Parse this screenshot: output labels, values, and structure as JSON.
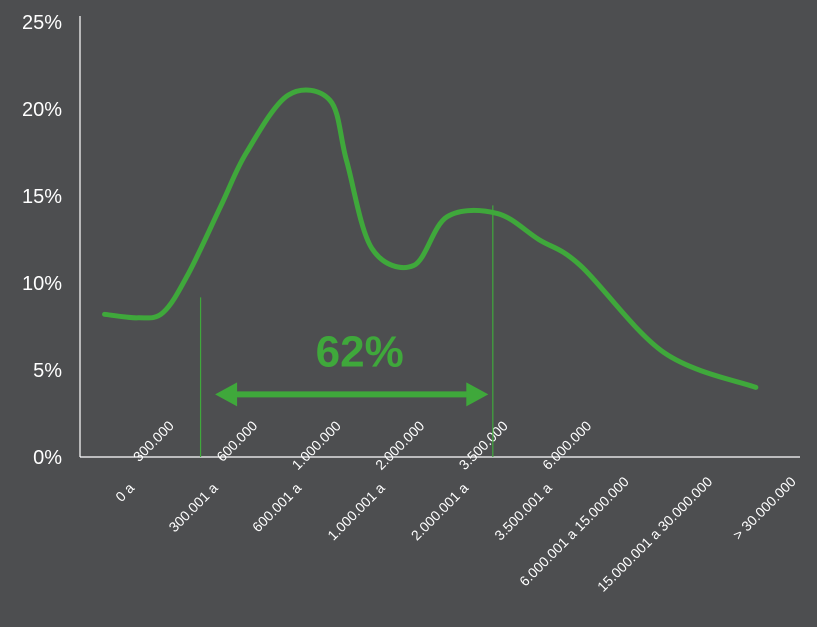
{
  "chart_data": {
    "type": "line",
    "y_ticks": [
      "0%",
      "5%",
      "10%",
      "15%",
      "20%",
      "25%"
    ],
    "ylim": [
      0,
      25
    ],
    "categories": [
      [
        "0 a",
        "300.000"
      ],
      [
        "300.001 a",
        "600.000"
      ],
      [
        "600.001 a",
        "1.000.000"
      ],
      [
        "1.000.001 a",
        "2.000.000"
      ],
      [
        "2.000.001 a",
        "3.500.000"
      ],
      [
        "3.500.001 a",
        "6.000.000"
      ],
      [
        "6.000.001 a 15.000.000"
      ],
      [
        "15.000.001 a 30.000.000"
      ],
      [
        "> 30.000.000"
      ]
    ],
    "series": [
      {
        "x": [
          0.3,
          0.7,
          1.0,
          1.3,
          1.7,
          2.0,
          2.5,
          3.0,
          3.2,
          3.5,
          4.0,
          4.4,
          5.0,
          5.5,
          6.0,
          7.0,
          8.1
        ],
        "y": [
          8.2,
          8.0,
          8.3,
          10.5,
          14.5,
          17.5,
          20.8,
          20.5,
          17.0,
          12.0,
          11.0,
          13.8,
          14.0,
          12.5,
          11.0,
          6.0,
          4.0
        ]
      }
    ],
    "color": "#3fa83b",
    "axis_color": "#ffffff",
    "text_color": "#ffffff",
    "vlines_x": [
      1.45,
      4.95
    ],
    "annotation": {
      "label": "62%",
      "x_from": 1.6,
      "x_to": 4.8,
      "y": 3.6
    },
    "grid": false,
    "legend": "none"
  }
}
